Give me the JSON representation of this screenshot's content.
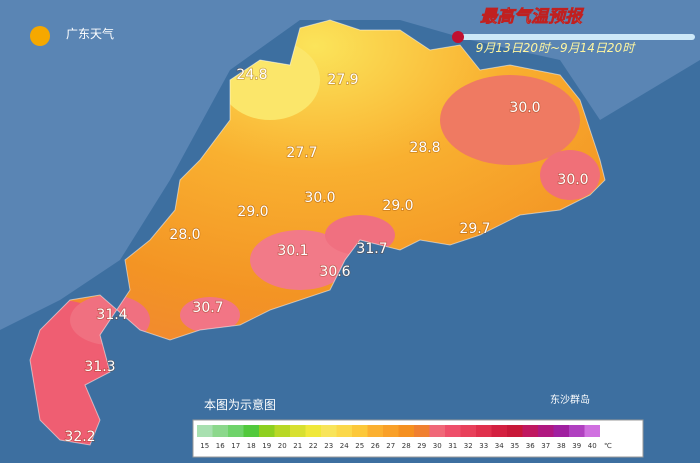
{
  "header": {
    "logo": "广东天气",
    "title": "最高气温预报",
    "period": "9月13日20时~9月14日20时"
  },
  "temperatures": [
    "24.8",
    "27.9",
    "30.0",
    "27.7",
    "28.8",
    "30.0",
    "29.0",
    "30.0",
    "29.0",
    "28.0",
    "29.7",
    "30.1",
    "31.7",
    "30.6",
    "31.4",
    "30.7",
    "31.3",
    "32.2"
  ],
  "note": "本图为示意图",
  "island": "东沙群岛",
  "legend": {
    "unit": "℃",
    "items": [
      {
        "label": 15,
        "color": "#a8e0b0"
      },
      {
        "label": 16,
        "color": "#8cd88c"
      },
      {
        "label": 17,
        "color": "#6fd36a"
      },
      {
        "label": 18,
        "color": "#52c93c"
      },
      {
        "label": 19,
        "color": "#8ed01f"
      },
      {
        "label": 20,
        "color": "#b8d825"
      },
      {
        "label": 21,
        "color": "#d8e030"
      },
      {
        "label": 22,
        "color": "#f0e83a"
      },
      {
        "label": 23,
        "color": "#f8e45a"
      },
      {
        "label": 24,
        "color": "#fbd84a"
      },
      {
        "label": 25,
        "color": "#fcc83a"
      },
      {
        "label": 26,
        "color": "#fbb030"
      },
      {
        "label": 27,
        "color": "#f9a028"
      },
      {
        "label": 28,
        "color": "#f59020"
      },
      {
        "label": 29,
        "color": "#f08030"
      },
      {
        "label": 30,
        "color": "#f06878"
      },
      {
        "label": 31,
        "color": "#ee4f6a"
      },
      {
        "label": 32,
        "color": "#e8405a"
      },
      {
        "label": 33,
        "color": "#e0304c"
      },
      {
        "label": 34,
        "color": "#d42040"
      },
      {
        "label": 35,
        "color": "#c81838"
      },
      {
        "label": 36,
        "color": "#c01860"
      },
      {
        "label": 37,
        "color": "#b01880"
      },
      {
        "label": 38,
        "color": "#a020a0"
      },
      {
        "label": 39,
        "color": "#b040c0"
      },
      {
        "label": 40,
        "color": "#d070e0"
      }
    ]
  }
}
